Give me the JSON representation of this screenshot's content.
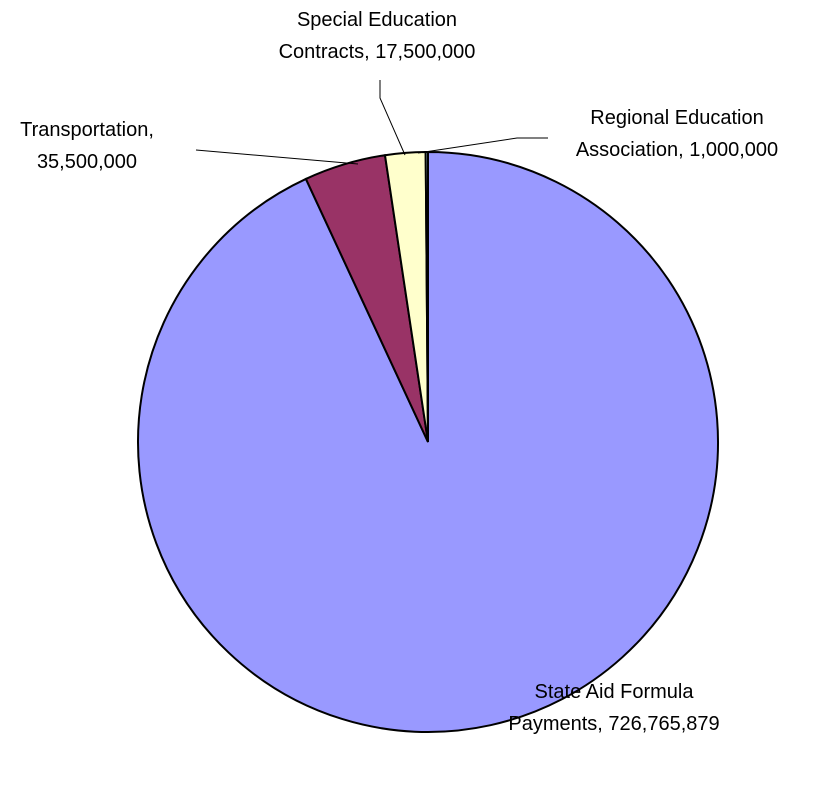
{
  "chart_data": {
    "type": "pie",
    "start_angle": "12 o'clock",
    "direction": "clockwise",
    "legend": "none",
    "slices": [
      {
        "name": "State Aid Formula Payments",
        "value": 726765879,
        "label_lines": [
          "State Aid Formula",
          "Payments, 726,765,879"
        ],
        "color": "#9999ff"
      },
      {
        "name": "Transportation",
        "value": 35500000,
        "label_lines": [
          "Transportation,",
          "35,500,000"
        ],
        "color": "#993366"
      },
      {
        "name": "Special Education Contracts",
        "value": 17500000,
        "label_lines": [
          "Special Education",
          "Contracts, 17,500,000"
        ],
        "color": "#ffffcc"
      },
      {
        "name": "Regional Education Association",
        "value": 1000000,
        "label_lines": [
          "Regional Education",
          "Association, 1,000,000"
        ],
        "color": "#ccffff"
      }
    ]
  }
}
